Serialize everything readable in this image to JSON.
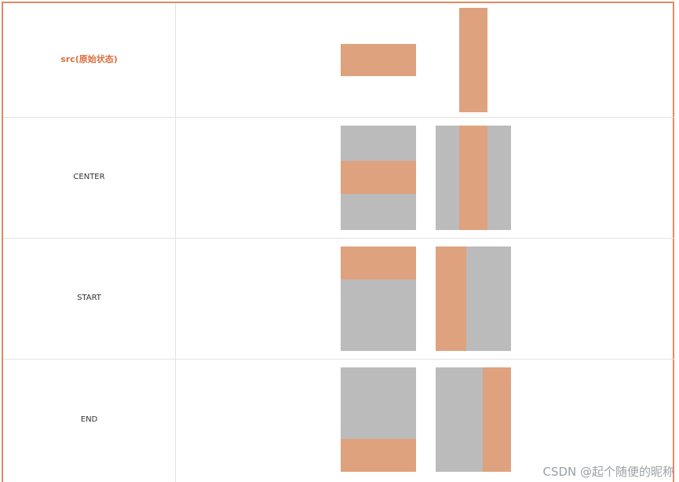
{
  "rows": [
    {
      "label": "src(原始状态)"
    },
    {
      "label": "CENTER"
    },
    {
      "label": "START"
    },
    {
      "label": "END"
    }
  ],
  "colors": {
    "border": "#e08a5f",
    "image": "#dea27e",
    "canvas": "#bbbbbb",
    "src_label": "#d9703f"
  },
  "watermark": "CSDN @起个随便的昵称"
}
